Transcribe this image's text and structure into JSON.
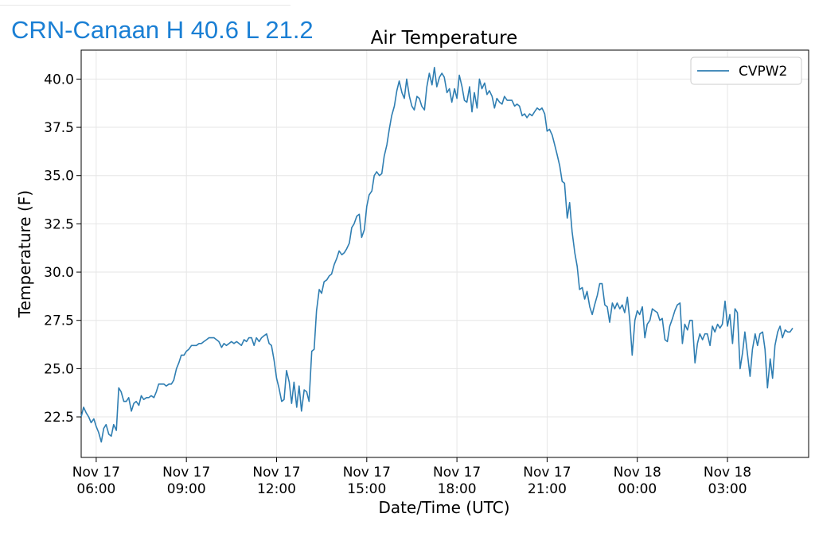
{
  "header": {
    "station_title": "CRN-Canaan H 40.6 L 21.2"
  },
  "colors": {
    "header_text": "#1a7fd4",
    "series_line": "#2f7eb2",
    "grid": "#e6e6e6"
  },
  "chart_data": {
    "type": "line",
    "title": "Air Temperature",
    "xlabel": "Date/Time (UTC)",
    "ylabel": "Temperature (F)",
    "ylim": [
      20.4,
      41.5
    ],
    "xlim_hours": [
      -0.5,
      23.7
    ],
    "grid": true,
    "legend_position": "top-right",
    "y_ticks": [
      {
        "value": 22.5,
        "label": "22.5"
      },
      {
        "value": 25.0,
        "label": "25.0"
      },
      {
        "value": 27.5,
        "label": "27.5"
      },
      {
        "value": 30.0,
        "label": "30.0"
      },
      {
        "value": 32.5,
        "label": "32.5"
      },
      {
        "value": 35.0,
        "label": "35.0"
      },
      {
        "value": 37.5,
        "label": "37.5"
      },
      {
        "value": 40.0,
        "label": "40.0"
      }
    ],
    "x_ticks": [
      {
        "hour": 0,
        "line1": "Nov 17",
        "line2": "06:00"
      },
      {
        "hour": 3,
        "line1": "Nov 17",
        "line2": "09:00"
      },
      {
        "hour": 6,
        "line1": "Nov 17",
        "line2": "12:00"
      },
      {
        "hour": 9,
        "line1": "Nov 17",
        "line2": "15:00"
      },
      {
        "hour": 12,
        "line1": "Nov 17",
        "line2": "18:00"
      },
      {
        "hour": 15,
        "line1": "Nov 17",
        "line2": "21:00"
      },
      {
        "hour": 18,
        "line1": "Nov 18",
        "line2": "00:00"
      },
      {
        "hour": 21,
        "line1": "Nov 18",
        "line2": "03:00"
      }
    ],
    "series": [
      {
        "name": "CVPW2",
        "color": "#2f7eb2",
        "points": [
          [
            -0.5,
            22.5
          ],
          [
            -0.42,
            23.0
          ],
          [
            -0.33,
            22.7
          ],
          [
            -0.25,
            22.5
          ],
          [
            -0.17,
            22.2
          ],
          [
            -0.08,
            22.4
          ],
          [
            0.0,
            22.0
          ],
          [
            0.08,
            21.7
          ],
          [
            0.17,
            21.2
          ],
          [
            0.25,
            21.9
          ],
          [
            0.33,
            22.1
          ],
          [
            0.42,
            21.6
          ],
          [
            0.5,
            21.5
          ],
          [
            0.58,
            22.1
          ],
          [
            0.67,
            21.8
          ],
          [
            0.75,
            24.0
          ],
          [
            0.83,
            23.8
          ],
          [
            0.92,
            23.3
          ],
          [
            1.0,
            23.3
          ],
          [
            1.08,
            23.5
          ],
          [
            1.17,
            22.8
          ],
          [
            1.25,
            23.2
          ],
          [
            1.33,
            23.3
          ],
          [
            1.42,
            23.1
          ],
          [
            1.5,
            23.6
          ],
          [
            1.58,
            23.4
          ],
          [
            1.67,
            23.5
          ],
          [
            1.75,
            23.5
          ],
          [
            1.83,
            23.6
          ],
          [
            1.92,
            23.5
          ],
          [
            2.0,
            23.8
          ],
          [
            2.08,
            24.2
          ],
          [
            2.17,
            24.2
          ],
          [
            2.25,
            24.2
          ],
          [
            2.33,
            24.1
          ],
          [
            2.42,
            24.2
          ],
          [
            2.5,
            24.2
          ],
          [
            2.58,
            24.4
          ],
          [
            2.67,
            25.0
          ],
          [
            2.75,
            25.3
          ],
          [
            2.83,
            25.7
          ],
          [
            2.92,
            25.7
          ],
          [
            3.0,
            25.9
          ],
          [
            3.08,
            26.0
          ],
          [
            3.17,
            26.2
          ],
          [
            3.25,
            26.2
          ],
          [
            3.33,
            26.2
          ],
          [
            3.42,
            26.3
          ],
          [
            3.5,
            26.3
          ],
          [
            3.58,
            26.4
          ],
          [
            3.67,
            26.5
          ],
          [
            3.75,
            26.6
          ],
          [
            3.83,
            26.6
          ],
          [
            3.92,
            26.6
          ],
          [
            4.0,
            26.5
          ],
          [
            4.08,
            26.4
          ],
          [
            4.17,
            26.1
          ],
          [
            4.25,
            26.3
          ],
          [
            4.33,
            26.2
          ],
          [
            4.42,
            26.3
          ],
          [
            4.5,
            26.4
          ],
          [
            4.58,
            26.3
          ],
          [
            4.67,
            26.4
          ],
          [
            4.75,
            26.3
          ],
          [
            4.83,
            26.2
          ],
          [
            4.92,
            26.5
          ],
          [
            5.0,
            26.4
          ],
          [
            5.08,
            26.6
          ],
          [
            5.17,
            26.6
          ],
          [
            5.25,
            26.2
          ],
          [
            5.33,
            26.6
          ],
          [
            5.42,
            26.4
          ],
          [
            5.5,
            26.6
          ],
          [
            5.58,
            26.7
          ],
          [
            5.67,
            26.8
          ],
          [
            5.75,
            26.3
          ],
          [
            5.83,
            26.2
          ],
          [
            5.92,
            25.4
          ],
          [
            6.0,
            24.5
          ],
          [
            6.08,
            24.0
          ],
          [
            6.17,
            23.3
          ],
          [
            6.25,
            23.4
          ],
          [
            6.33,
            24.9
          ],
          [
            6.42,
            24.3
          ],
          [
            6.5,
            23.2
          ],
          [
            6.58,
            24.3
          ],
          [
            6.67,
            23.0
          ],
          [
            6.75,
            24.1
          ],
          [
            6.83,
            22.8
          ],
          [
            6.92,
            23.9
          ],
          [
            7.0,
            23.8
          ],
          [
            7.08,
            23.3
          ],
          [
            7.17,
            25.9
          ],
          [
            7.25,
            26.0
          ],
          [
            7.33,
            28.0
          ],
          [
            7.42,
            29.1
          ],
          [
            7.5,
            28.9
          ],
          [
            7.58,
            29.5
          ],
          [
            7.67,
            29.6
          ],
          [
            7.75,
            29.8
          ],
          [
            7.83,
            29.9
          ],
          [
            7.92,
            30.4
          ],
          [
            8.0,
            30.7
          ],
          [
            8.08,
            31.1
          ],
          [
            8.17,
            30.9
          ],
          [
            8.25,
            31.0
          ],
          [
            8.33,
            31.2
          ],
          [
            8.42,
            31.5
          ],
          [
            8.5,
            32.3
          ],
          [
            8.58,
            32.5
          ],
          [
            8.67,
            32.9
          ],
          [
            8.75,
            33.0
          ],
          [
            8.83,
            31.8
          ],
          [
            8.92,
            32.2
          ],
          [
            9.0,
            33.4
          ],
          [
            9.08,
            34.0
          ],
          [
            9.17,
            34.2
          ],
          [
            9.25,
            35.0
          ],
          [
            9.33,
            35.2
          ],
          [
            9.42,
            35.0
          ],
          [
            9.5,
            35.1
          ],
          [
            9.58,
            36.0
          ],
          [
            9.67,
            36.6
          ],
          [
            9.75,
            37.4
          ],
          [
            9.83,
            38.1
          ],
          [
            9.92,
            38.6
          ],
          [
            10.0,
            39.4
          ],
          [
            10.08,
            39.9
          ],
          [
            10.17,
            39.3
          ],
          [
            10.25,
            39.0
          ],
          [
            10.33,
            40.0
          ],
          [
            10.42,
            39.1
          ],
          [
            10.5,
            38.6
          ],
          [
            10.58,
            38.4
          ],
          [
            10.67,
            39.1
          ],
          [
            10.75,
            39.0
          ],
          [
            10.83,
            38.6
          ],
          [
            10.92,
            38.4
          ],
          [
            11.0,
            39.6
          ],
          [
            11.08,
            40.3
          ],
          [
            11.17,
            39.7
          ],
          [
            11.25,
            40.6
          ],
          [
            11.33,
            39.6
          ],
          [
            11.42,
            40.1
          ],
          [
            11.5,
            40.3
          ],
          [
            11.58,
            40.1
          ],
          [
            11.67,
            39.3
          ],
          [
            11.75,
            39.5
          ],
          [
            11.83,
            38.8
          ],
          [
            11.92,
            39.5
          ],
          [
            12.0,
            39.0
          ],
          [
            12.08,
            40.2
          ],
          [
            12.17,
            39.6
          ],
          [
            12.25,
            38.9
          ],
          [
            12.33,
            38.8
          ],
          [
            12.42,
            39.6
          ],
          [
            12.5,
            38.3
          ],
          [
            12.58,
            39.3
          ],
          [
            12.67,
            38.5
          ],
          [
            12.75,
            40.0
          ],
          [
            12.83,
            39.5
          ],
          [
            12.92,
            39.8
          ],
          [
            13.0,
            39.2
          ],
          [
            13.08,
            39.4
          ],
          [
            13.17,
            39.1
          ],
          [
            13.25,
            38.5
          ],
          [
            13.33,
            39.0
          ],
          [
            13.42,
            38.8
          ],
          [
            13.5,
            38.7
          ],
          [
            13.58,
            39.1
          ],
          [
            13.67,
            38.9
          ],
          [
            13.75,
            38.9
          ],
          [
            13.83,
            38.9
          ],
          [
            13.92,
            38.6
          ],
          [
            14.0,
            38.7
          ],
          [
            14.08,
            38.6
          ],
          [
            14.17,
            38.1
          ],
          [
            14.25,
            38.2
          ],
          [
            14.33,
            38.0
          ],
          [
            14.42,
            38.2
          ],
          [
            14.5,
            38.1
          ],
          [
            14.58,
            38.3
          ],
          [
            14.67,
            38.5
          ],
          [
            14.75,
            38.4
          ],
          [
            14.83,
            38.5
          ],
          [
            14.92,
            38.2
          ],
          [
            15.0,
            37.3
          ],
          [
            15.08,
            37.4
          ],
          [
            15.17,
            37.1
          ],
          [
            15.25,
            36.6
          ],
          [
            15.33,
            36.1
          ],
          [
            15.42,
            35.5
          ],
          [
            15.5,
            34.7
          ],
          [
            15.58,
            34.6
          ],
          [
            15.67,
            32.8
          ],
          [
            15.75,
            33.6
          ],
          [
            15.83,
            32.1
          ],
          [
            15.92,
            31.0
          ],
          [
            16.0,
            30.3
          ],
          [
            16.08,
            29.1
          ],
          [
            16.17,
            29.2
          ],
          [
            16.25,
            28.6
          ],
          [
            16.33,
            29.0
          ],
          [
            16.42,
            28.2
          ],
          [
            16.5,
            27.8
          ],
          [
            16.58,
            28.3
          ],
          [
            16.67,
            28.8
          ],
          [
            16.75,
            29.4
          ],
          [
            16.83,
            29.4
          ],
          [
            16.92,
            28.3
          ],
          [
            17.0,
            28.2
          ],
          [
            17.08,
            27.4
          ],
          [
            17.17,
            28.4
          ],
          [
            17.25,
            28.1
          ],
          [
            17.33,
            28.4
          ],
          [
            17.42,
            28.1
          ],
          [
            17.5,
            28.3
          ],
          [
            17.58,
            27.9
          ],
          [
            17.67,
            28.7
          ],
          [
            17.75,
            27.5
          ],
          [
            17.83,
            25.7
          ],
          [
            17.92,
            27.5
          ],
          [
            18.0,
            28.0
          ],
          [
            18.08,
            27.8
          ],
          [
            18.17,
            28.2
          ],
          [
            18.25,
            26.6
          ],
          [
            18.33,
            27.3
          ],
          [
            18.42,
            27.5
          ],
          [
            18.5,
            28.1
          ],
          [
            18.58,
            28.0
          ],
          [
            18.67,
            27.9
          ],
          [
            18.75,
            27.5
          ],
          [
            18.83,
            27.6
          ],
          [
            18.92,
            26.5
          ],
          [
            19.0,
            26.4
          ],
          [
            19.08,
            27.2
          ],
          [
            19.17,
            27.6
          ],
          [
            19.25,
            28.0
          ],
          [
            19.33,
            28.3
          ],
          [
            19.42,
            28.4
          ],
          [
            19.5,
            26.3
          ],
          [
            19.58,
            27.3
          ],
          [
            19.67,
            27.0
          ],
          [
            19.75,
            27.5
          ],
          [
            19.83,
            27.5
          ],
          [
            19.92,
            25.3
          ],
          [
            20.0,
            26.3
          ],
          [
            20.08,
            26.8
          ],
          [
            20.17,
            26.5
          ],
          [
            20.25,
            26.8
          ],
          [
            20.33,
            26.8
          ],
          [
            20.42,
            26.2
          ],
          [
            20.5,
            27.2
          ],
          [
            20.58,
            26.9
          ],
          [
            20.67,
            27.3
          ],
          [
            20.75,
            27.1
          ],
          [
            20.83,
            27.3
          ],
          [
            20.92,
            28.5
          ],
          [
            21.0,
            27.2
          ],
          [
            21.08,
            27.8
          ],
          [
            21.17,
            26.3
          ],
          [
            21.25,
            28.1
          ],
          [
            21.33,
            27.9
          ],
          [
            21.42,
            25.0
          ],
          [
            21.5,
            25.8
          ],
          [
            21.58,
            26.9
          ],
          [
            21.67,
            25.7
          ],
          [
            21.75,
            24.6
          ],
          [
            21.83,
            26.0
          ],
          [
            21.92,
            26.8
          ],
          [
            22.0,
            26.2
          ],
          [
            22.08,
            26.8
          ],
          [
            22.17,
            26.9
          ],
          [
            22.25,
            26.0
          ],
          [
            22.33,
            24.0
          ],
          [
            22.42,
            25.5
          ],
          [
            22.5,
            24.5
          ],
          [
            22.58,
            26.2
          ],
          [
            22.67,
            26.9
          ],
          [
            22.75,
            27.2
          ],
          [
            22.83,
            26.6
          ],
          [
            22.92,
            27.0
          ],
          [
            23.0,
            26.9
          ],
          [
            23.08,
            26.9
          ],
          [
            23.17,
            27.1
          ]
        ]
      }
    ]
  }
}
